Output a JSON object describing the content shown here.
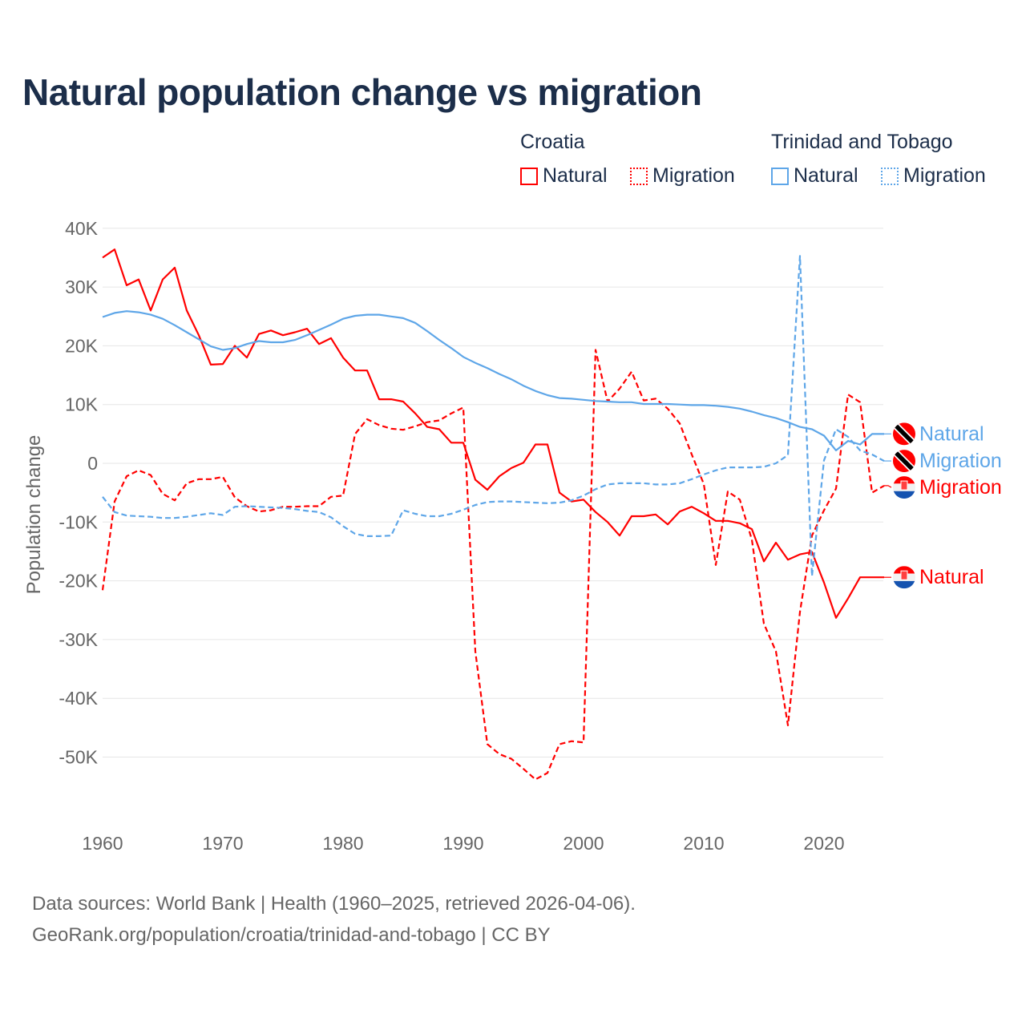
{
  "title": "Natural population change vs migration",
  "legend": {
    "groups": [
      {
        "name": "Croatia",
        "items": [
          "Natural",
          "Migration"
        ]
      },
      {
        "name": "Trinidad and Tobago",
        "items": [
          "Natural",
          "Migration"
        ]
      }
    ]
  },
  "footer": {
    "line1": "Data sources: World Bank | Health (1960–2025, retrieved 2026-04-06).",
    "line2": "GeoRank.org/population/croatia/trinidad-and-tobago | CC BY"
  },
  "chart_data": {
    "type": "line",
    "title": "Natural population change vs migration",
    "xlabel": "",
    "ylabel": "Population change",
    "xlim": [
      1960,
      2025
    ],
    "ylim": [
      -60000,
      40000
    ],
    "x_ticks": [
      1960,
      1970,
      1980,
      1990,
      2000,
      2010,
      2020
    ],
    "x_tick_labels": [
      "1960",
      "1970",
      "1980",
      "1990",
      "2000",
      "2010",
      "2020"
    ],
    "y_ticks": [
      40000,
      30000,
      20000,
      10000,
      0,
      -10000,
      -20000,
      -30000,
      -40000,
      -50000
    ],
    "y_tick_labels": [
      "40K",
      "30K",
      "20K",
      "10K",
      "0",
      "-10K",
      "-20K",
      "-30K",
      "-40K",
      "-50K"
    ],
    "grid": true,
    "legend_position": "top-right",
    "x_start": 1960,
    "series": [
      {
        "name": "Croatia Natural",
        "label": "Natural",
        "country": "Croatia",
        "color": "#ff0000",
        "dash": false,
        "values": [
          35000,
          36400,
          30300,
          31300,
          26000,
          31300,
          33300,
          26000,
          21800,
          16800,
          16900,
          20000,
          18000,
          22000,
          22600,
          21800,
          22300,
          22900,
          20300,
          21300,
          18000,
          15800,
          15800,
          10900,
          10900,
          10500,
          8500,
          6200,
          5800,
          3500,
          3500,
          -2800,
          -4500,
          -2200,
          -800,
          100,
          3200,
          3200,
          -5000,
          -6500,
          -6200,
          -8300,
          -10000,
          -12300,
          -9000,
          -9000,
          -8700,
          -10400,
          -8200,
          -7400,
          -8500,
          -9800,
          -9800,
          -10200,
          -11200,
          -16700,
          -13500,
          -16400,
          -15500,
          -15100,
          -20300,
          -26300,
          -23000,
          -19400,
          -19400,
          -19400
        ]
      },
      {
        "name": "Croatia Migration",
        "label": "Migration",
        "country": "Croatia",
        "color": "#ff0000",
        "dash": true,
        "values": [
          -21600,
          -6500,
          -2200,
          -1200,
          -2000,
          -5200,
          -6300,
          -3400,
          -2700,
          -2700,
          -2300,
          -5800,
          -7300,
          -8200,
          -8000,
          -7400,
          -7400,
          -7300,
          -7300,
          -5700,
          -5500,
          5000,
          7500,
          6500,
          5900,
          5700,
          6300,
          7000,
          7300,
          8500,
          9500,
          -32000,
          -47800,
          -49500,
          -50300,
          -52000,
          -53800,
          -52700,
          -47800,
          -47300,
          -47500,
          19300,
          10500,
          12700,
          15600,
          10700,
          11000,
          9300,
          6800,
          1500,
          -3500,
          -17300,
          -4800,
          -6200,
          -13000,
          -27300,
          -32000,
          -44600,
          -25300,
          -12300,
          -8000,
          -4300,
          11700,
          10400,
          -5000,
          -3800
        ]
      },
      {
        "name": "Trinidad and Tobago Natural",
        "label": "Natural",
        "country": "Trinidad and Tobago",
        "color": "#5ea6e8",
        "dash": false,
        "values": [
          24900,
          25600,
          25900,
          25700,
          25300,
          24600,
          23500,
          22300,
          21100,
          19900,
          19300,
          19600,
          20300,
          20800,
          20600,
          20600,
          21000,
          21800,
          22700,
          23600,
          24600,
          25100,
          25300,
          25300,
          25000,
          24700,
          23900,
          22500,
          21000,
          19600,
          18100,
          17100,
          16200,
          15200,
          14300,
          13200,
          12300,
          11600,
          11100,
          11000,
          10800,
          10600,
          10500,
          10400,
          10400,
          10100,
          10100,
          10100,
          10000,
          9900,
          9900,
          9800,
          9600,
          9300,
          8800,
          8200,
          7700,
          7000,
          6200,
          5800,
          4700,
          2200,
          3800,
          3200,
          5000,
          5000
        ]
      },
      {
        "name": "Trinidad and Tobago Migration",
        "label": "Migration",
        "country": "Trinidad and Tobago",
        "color": "#5ea6e8",
        "dash": true,
        "values": [
          -5700,
          -8300,
          -8900,
          -9000,
          -9100,
          -9300,
          -9300,
          -9100,
          -8800,
          -8500,
          -8800,
          -7400,
          -7300,
          -7400,
          -7500,
          -7600,
          -7800,
          -8100,
          -8300,
          -9200,
          -10700,
          -12000,
          -12400,
          -12400,
          -12300,
          -8000,
          -8600,
          -9000,
          -9000,
          -8600,
          -7900,
          -7100,
          -6600,
          -6500,
          -6500,
          -6600,
          -6700,
          -6800,
          -6700,
          -6300,
          -5500,
          -4400,
          -3600,
          -3400,
          -3400,
          -3400,
          -3600,
          -3600,
          -3400,
          -2700,
          -1900,
          -1200,
          -700,
          -700,
          -700,
          -600,
          0,
          1400,
          35300,
          -19200,
          500,
          5800,
          4500,
          2200,
          1500,
          400
        ]
      }
    ]
  }
}
